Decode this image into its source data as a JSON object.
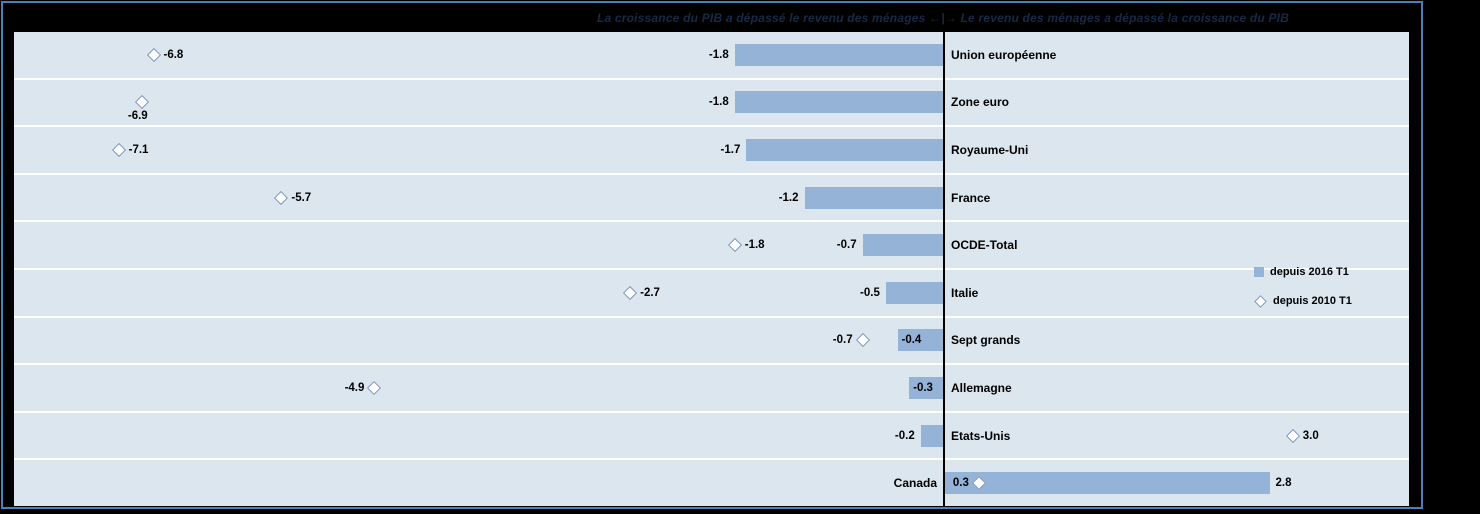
{
  "title": "La croissance du PIB a dépassé le revenu des ménages  ←|→  Le revenu des ménages a dépassé la croissance du PIB",
  "colors": {
    "canvas_background": "#000000",
    "frame_border": "#4a7ebc",
    "plot_background": "#dce6ee",
    "bar": "#95b3d7",
    "gridline": "#ffffff",
    "axis_line": "#000000",
    "marker_fill": "#ffffff",
    "marker_stroke": "#7f96bf",
    "title_text": "#172a45",
    "label_text": "#000000"
  },
  "legend": {
    "items": [
      {
        "marker": "square",
        "label": "depuis 2016 T1"
      },
      {
        "marker": "diamond",
        "label": "depuis 2010 T1"
      }
    ]
  },
  "chart_data": {
    "type": "bar",
    "orientation": "horizontal",
    "title": "La croissance du PIB a dépassé le revenu des ménages  ←|→  Le revenu des ménages a dépassé la croissance du PIB",
    "xlim": [
      -8,
      4
    ],
    "grid": "white row separators, vertical zero axis line",
    "legend_position": "middle-right",
    "categories": [
      "Union européenne",
      "Zone euro",
      "Royaume-Uni",
      "France",
      "OCDE-Total",
      "Italie",
      "Sept grands",
      "Allemagne",
      "Etats-Unis",
      "Canada"
    ],
    "series": [
      {
        "name": "depuis 2016 T1",
        "marker": "bar",
        "values": [
          -1.8,
          -1.8,
          -1.7,
          -1.2,
          -0.7,
          -0.5,
          -0.4,
          -0.3,
          -0.2,
          2.8
        ]
      },
      {
        "name": "depuis 2010 T1",
        "marker": "diamond",
        "values": [
          -6.8,
          -6.9,
          -7.1,
          -5.7,
          -1.8,
          -2.7,
          -0.7,
          -4.9,
          3.0,
          0.3
        ]
      }
    ],
    "rows": [
      {
        "category": "Union européenne",
        "cat_side": "right",
        "bar": -1.8,
        "bar_label": "-1.8",
        "bar_label_pos": "outside",
        "diamond": -6.8,
        "dia_label": "-6.8",
        "dia_label_pos": "right"
      },
      {
        "category": "Zone euro",
        "cat_side": "right",
        "bar": -1.8,
        "bar_label": "-1.8",
        "bar_label_pos": "outside",
        "diamond": -6.9,
        "dia_label": "-6.9",
        "dia_label_pos": "below"
      },
      {
        "category": "Royaume-Uni",
        "cat_side": "right",
        "bar": -1.7,
        "bar_label": "-1.7",
        "bar_label_pos": "outside",
        "diamond": -7.1,
        "dia_label": "-7.1",
        "dia_label_pos": "right"
      },
      {
        "category": "France",
        "cat_side": "right",
        "bar": -1.2,
        "bar_label": "-1.2",
        "bar_label_pos": "outside",
        "diamond": -5.7,
        "dia_label": "-5.7",
        "dia_label_pos": "right"
      },
      {
        "category": "OCDE-Total",
        "cat_side": "right",
        "bar": -0.7,
        "bar_label": "-0.7",
        "bar_label_pos": "outside",
        "diamond": -1.8,
        "dia_label": "-1.8",
        "dia_label_pos": "right"
      },
      {
        "category": "Italie",
        "cat_side": "right",
        "bar": -0.5,
        "bar_label": "-0.5",
        "bar_label_pos": "outside",
        "diamond": -2.7,
        "dia_label": "-2.7",
        "dia_label_pos": "right"
      },
      {
        "category": "Sept grands",
        "cat_side": "right",
        "bar": -0.4,
        "bar_label": "-0.4",
        "bar_label_pos": "inside",
        "diamond": -0.7,
        "dia_label": "-0.7",
        "dia_label_pos": "left"
      },
      {
        "category": "Allemagne",
        "cat_side": "right",
        "bar": -0.3,
        "bar_label": "-0.3",
        "bar_label_pos": "inside",
        "diamond": -4.9,
        "dia_label": "-4.9",
        "dia_label_pos": "left"
      },
      {
        "category": "Etats-Unis",
        "cat_side": "right",
        "bar": -0.2,
        "bar_label": "-0.2",
        "bar_label_pos": "outside",
        "diamond": 3.0,
        "dia_label": "3.0",
        "dia_label_pos": "right"
      },
      {
        "category": "Canada",
        "cat_side": "left",
        "bar": 2.8,
        "bar_label": "2.8",
        "bar_label_pos": "end",
        "diamond": 0.3,
        "dia_label": "0.3",
        "dia_label_pos": "left"
      }
    ]
  }
}
